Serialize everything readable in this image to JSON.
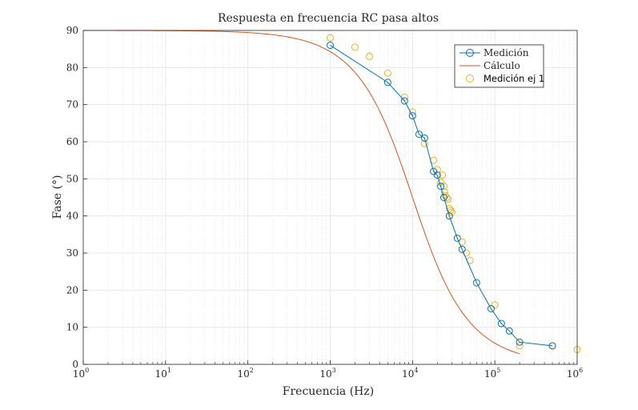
{
  "chart_data": {
    "type": "line",
    "title": "Respuesta en frecuencia RC pasa altos",
    "xlabel": "Frecuencia (Hz)",
    "ylabel": "Fase (°)",
    "xscale": "log",
    "xlim": [
      1,
      1000000
    ],
    "ylim": [
      0,
      90
    ],
    "grid": true,
    "legend_position": "top-right",
    "x_ticks": [
      {
        "base": "10",
        "exp": "0"
      },
      {
        "base": "10",
        "exp": "1"
      },
      {
        "base": "10",
        "exp": "2"
      },
      {
        "base": "10",
        "exp": "3"
      },
      {
        "base": "10",
        "exp": "4"
      },
      {
        "base": "10",
        "exp": "5"
      },
      {
        "base": "10",
        "exp": "6"
      }
    ],
    "y_ticks": [
      "0",
      "10",
      "20",
      "30",
      "40",
      "50",
      "60",
      "70",
      "80",
      "90"
    ],
    "cutoff_frequency_hz": 10000,
    "series": [
      {
        "name": "Medición",
        "color": "#0072BD",
        "style": "line-circle",
        "x": [
          1000,
          5000,
          8000,
          10000,
          12000,
          14000,
          18000,
          20000,
          22000,
          24000,
          28000,
          35000,
          40000,
          60000,
          90000,
          120000,
          150000,
          200000,
          500000
        ],
        "y": [
          86,
          76,
          71,
          67,
          62,
          61,
          52,
          51,
          48,
          45,
          40,
          34,
          31,
          22,
          15,
          11,
          9,
          6,
          5
        ]
      },
      {
        "name": "Cálculo",
        "color": "#D95319",
        "style": "line"
      },
      {
        "name": "Medición ej 1",
        "color": "#EDB120",
        "style": "circle",
        "x": [
          1000,
          2000,
          3000,
          5000,
          8000,
          10000,
          14000,
          18000,
          20000,
          22000,
          23000,
          24000,
          24500,
          25000,
          26000,
          27000,
          28000,
          29000,
          30000,
          40000,
          45000,
          50000,
          100000,
          200000,
          500000,
          1000000
        ],
        "y": [
          88,
          85.5,
          83,
          78.5,
          72,
          68,
          59.5,
          55,
          52.5,
          49,
          51,
          48,
          46.5,
          45.5,
          45,
          44.5,
          42,
          41.5,
          41,
          33,
          30,
          28,
          16,
          5,
          5,
          4
        ]
      }
    ]
  }
}
